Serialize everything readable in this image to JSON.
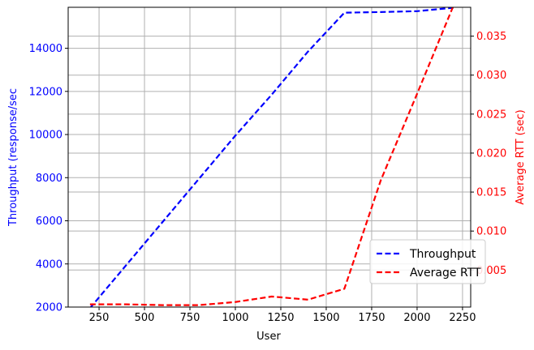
{
  "chart_data": {
    "type": "line",
    "xlabel": "User",
    "x_ticks": [
      250,
      500,
      750,
      1000,
      1250,
      1500,
      1750,
      2000,
      2250
    ],
    "xlim": [
      80,
      2295
    ],
    "grid": true,
    "legend_position": "lower-right",
    "left_axis": {
      "label": "Throughput (response/sec",
      "color": "#0000ff",
      "ticks": [
        2000,
        4000,
        6000,
        8000,
        10000,
        12000,
        14000
      ],
      "ylim": [
        2000,
        15900
      ]
    },
    "right_axis": {
      "label": "Average RTT (sec)",
      "color": "#ff0000",
      "ticks": [
        0.005,
        0.01,
        0.015,
        0.02,
        0.025,
        0.03,
        0.035
      ],
      "tick_labels": [
        "0.005",
        "0.010",
        "0.015",
        "0.020",
        "0.025",
        "0.030",
        "0.035"
      ],
      "ylim": [
        0.00025,
        0.0387
      ]
    },
    "series": [
      {
        "name": "Throughput",
        "axis": "left",
        "color": "#0000ff",
        "style": "dashed",
        "x": [
          200,
          400,
          600,
          800,
          1000,
          1200,
          1400,
          1600,
          1800,
          2000,
          2200
        ],
        "y": [
          1950,
          3950,
          5950,
          7950,
          9950,
          11850,
          13850,
          15650,
          15680,
          15720,
          15880
        ]
      },
      {
        "name": "Average RTT",
        "axis": "right",
        "color": "#ff0000",
        "style": "dashed",
        "x": [
          200,
          400,
          600,
          800,
          1000,
          1200,
          1400,
          1600,
          1800,
          2000,
          2200
        ],
        "y": [
          0.0006,
          0.0006,
          0.0005,
          0.0005,
          0.0009,
          0.0016,
          0.0012,
          0.0026,
          0.0165,
          0.0276,
          0.0389
        ]
      }
    ]
  }
}
